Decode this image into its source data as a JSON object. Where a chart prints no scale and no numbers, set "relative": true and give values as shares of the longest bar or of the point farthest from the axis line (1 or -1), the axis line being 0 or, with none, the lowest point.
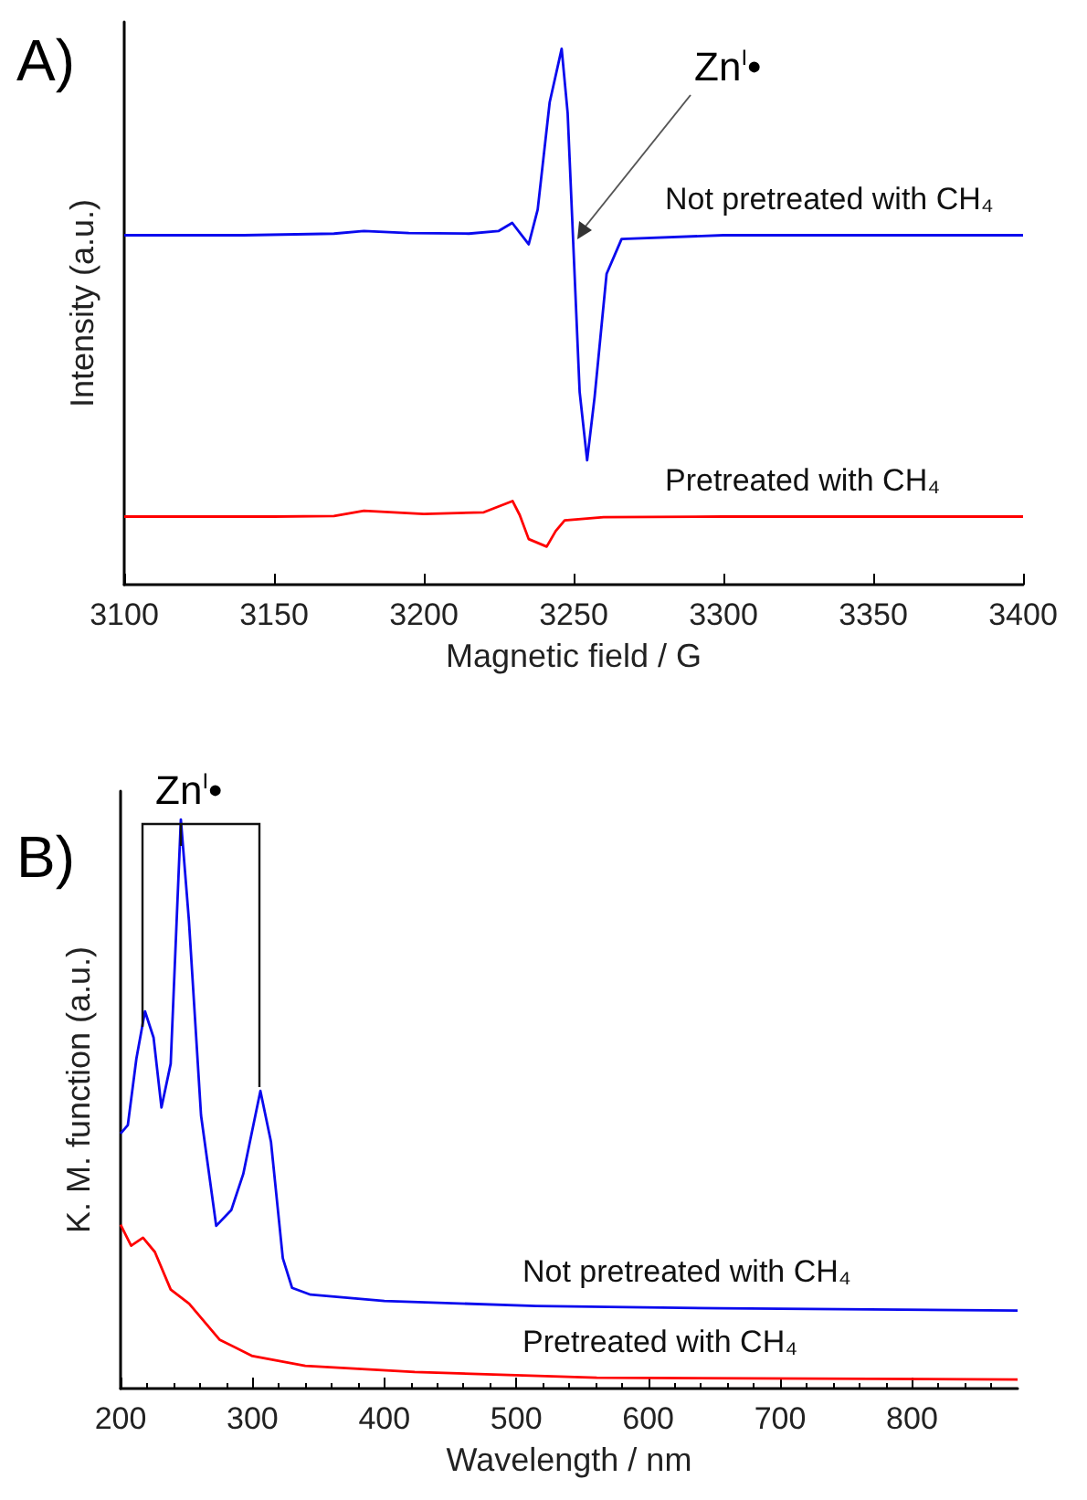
{
  "chart_data": [
    {
      "type": "line",
      "title": "A)",
      "xlabel": "Magnetic field / G",
      "ylabel": "Intensity (a.u.)",
      "relative": true,
      "tick_labels": "x",
      "legend": false,
      "xlim": [
        3100,
        3400
      ],
      "xticks": [
        3100,
        3150,
        3200,
        3250,
        3300,
        3350,
        3400
      ],
      "annotations": [
        "Zn$^{I}$•"
      ],
      "series": [
        {
          "name": "Not pretreated with CH₄",
          "color": "#0a0aee",
          "x": [
            3100,
            3140,
            3170,
            3180,
            3195,
            3215,
            3225,
            3229.5,
            3235,
            3238,
            3242,
            3246,
            3248,
            3250,
            3252,
            3254.5,
            3257,
            3261,
            3266,
            3300,
            3350,
            3400
          ],
          "values": [
            0.652,
            0.652,
            0.655,
            0.66,
            0.656,
            0.655,
            0.66,
            0.675,
            0.635,
            0.7,
            0.9,
            1.0,
            0.88,
            0.62,
            0.36,
            0.232,
            0.35,
            0.58,
            0.645,
            0.652,
            0.652,
            0.652
          ]
        },
        {
          "name": "Pretreated with CH₄",
          "color": "#ff0000",
          "x": [
            3100,
            3150,
            3170,
            3180,
            3200,
            3220,
            3229.6,
            3232,
            3235,
            3241,
            3244,
            3247,
            3260,
            3300,
            3400
          ],
          "values": [
            0.127,
            0.127,
            0.128,
            0.138,
            0.132,
            0.135,
            0.156,
            0.13,
            0.085,
            0.071,
            0.1,
            0.12,
            0.126,
            0.127,
            0.127
          ]
        }
      ]
    },
    {
      "type": "line",
      "title": "B)",
      "xlabel": "Wavelength / nm",
      "ylabel": "K. M. function (a.u.)",
      "relative": true,
      "tick_labels": "x",
      "legend": false,
      "xlim": [
        200,
        880
      ],
      "xticks": [
        200,
        300,
        400,
        500,
        600,
        700,
        800
      ],
      "annotations": [
        "Zn$^{I}$•"
      ],
      "series": [
        {
          "name": "Not pretreated with CH₄",
          "color": "#0a0aee",
          "x": [
            200,
            205.5,
            212,
            218.5,
            225,
            231,
            238,
            245.7,
            251.8,
            261,
            272.5,
            284,
            293,
            306,
            314,
            323,
            330,
            344,
            400,
            515,
            654,
            880
          ],
          "values": [
            0.448,
            0.463,
            0.58,
            0.663,
            0.617,
            0.494,
            0.571,
            1.0,
            0.823,
            0.48,
            0.286,
            0.314,
            0.377,
            0.523,
            0.434,
            0.229,
            0.177,
            0.165,
            0.154,
            0.145,
            0.141,
            0.137
          ]
        },
        {
          "name": "Pretreated with CH₄",
          "color": "#ff0000",
          "x": [
            200,
            208,
            217,
            226,
            238,
            252,
            275,
            300,
            340,
            423,
            561,
            880
          ],
          "values": [
            0.288,
            0.251,
            0.265,
            0.24,
            0.174,
            0.149,
            0.086,
            0.057,
            0.04,
            0.029,
            0.019,
            0.016
          ]
        }
      ]
    }
  ]
}
